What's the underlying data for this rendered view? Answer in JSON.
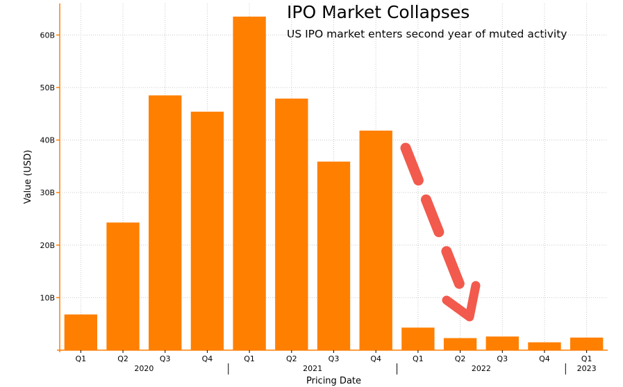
{
  "chart_data": {
    "type": "bar",
    "title": "IPO Market Collapses",
    "subtitle": "US IPO market enters second year of muted activity",
    "xlabel": "Pricing Date",
    "ylabel": "Value (USD)",
    "categories": [
      "Q1",
      "Q2",
      "Q3",
      "Q4",
      "Q1",
      "Q2",
      "Q3",
      "Q4",
      "Q1",
      "Q2",
      "Q3",
      "Q4",
      "Q1"
    ],
    "year_labels": [
      {
        "label": "2020",
        "span": [
          0,
          3
        ]
      },
      {
        "label": "2021",
        "span": [
          4,
          7
        ]
      },
      {
        "label": "2022",
        "span": [
          8,
          11
        ]
      },
      {
        "label": "2023",
        "span": [
          12,
          12
        ]
      }
    ],
    "series": [
      {
        "values": [
          6.8,
          24.3,
          48.5,
          45.4,
          63.5,
          47.9,
          35.9,
          41.8,
          4.3,
          2.3,
          2.6,
          1.5,
          2.4
        ]
      }
    ],
    "yticks": [
      10,
      20,
      30,
      40,
      50,
      60
    ],
    "ytick_labels": [
      "10B",
      "20B",
      "30B",
      "40B",
      "50B",
      "60B"
    ],
    "ylim": [
      0,
      66
    ],
    "grid": true,
    "annotations": [
      {
        "type": "dashed-arrow",
        "color": "#f25a4d",
        "direction": "down-right"
      }
    ],
    "colors": {
      "bar": "#ff7f00",
      "axis": "#ff7f00",
      "grid": "#c8c8c8",
      "arrow": "#f25a4d"
    }
  }
}
